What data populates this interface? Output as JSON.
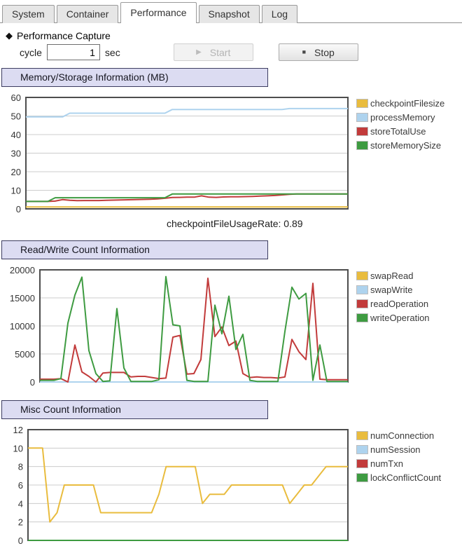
{
  "tabs": {
    "items": [
      {
        "label": "System",
        "active": false
      },
      {
        "label": "Container",
        "active": false
      },
      {
        "label": "Performance",
        "active": true
      },
      {
        "label": "Snapshot",
        "active": false
      },
      {
        "label": "Log",
        "active": false
      }
    ]
  },
  "capture": {
    "bullet_icon": "◆",
    "title": "Performance Capture",
    "cycle_label": "cycle",
    "cycle_value": "1",
    "unit_label": "sec",
    "start_icon": "▶",
    "start_label": "Start",
    "stop_icon": "■",
    "stop_label": "Stop"
  },
  "colors": {
    "yellow": "#e9bc3e",
    "light_blue": "#aed3ee",
    "red": "#c23b3b",
    "green": "#3e9b41",
    "grid": "#cccccc",
    "plot_border": "#4d4d4d",
    "section_bg": "#dcdcf2"
  },
  "chart_data": [
    {
      "type": "line",
      "title": "Memory/Storage Information (MB)",
      "ylim": [
        0,
        60
      ],
      "yticks": [
        0,
        10,
        20,
        30,
        40,
        50,
        60
      ],
      "grid": true,
      "legend_position": "right",
      "footnote": "checkpointFileUsageRate: 0.89",
      "series": [
        {
          "name": "checkpointFilesize",
          "color": "#e9bc3e",
          "values": [
            1,
            1,
            1,
            1,
            1,
            1,
            1,
            1,
            1,
            1,
            1,
            1,
            1,
            1,
            1,
            1,
            1,
            1,
            1,
            1,
            1,
            1,
            1,
            1,
            1,
            1,
            1,
            1,
            1,
            1,
            1,
            1,
            1,
            1,
            1,
            1,
            1,
            1,
            1,
            1,
            1,
            1,
            1,
            1,
            1
          ]
        },
        {
          "name": "processMemory",
          "color": "#aed3ee",
          "values": [
            49.5,
            49.5,
            49.5,
            49.5,
            49.5,
            49.5,
            51.5,
            51.5,
            51.5,
            51.5,
            51.5,
            51.5,
            51.5,
            51.5,
            51.5,
            51.5,
            51.5,
            51.5,
            51.5,
            51.5,
            53.5,
            53.5,
            53.5,
            53.5,
            53.5,
            53.5,
            53.5,
            53.5,
            53.5,
            53.5,
            53.5,
            53.5,
            53.5,
            53.5,
            53.5,
            53.5,
            54,
            54,
            54,
            54,
            54,
            54,
            54,
            54,
            54
          ]
        },
        {
          "name": "storeTotalUse",
          "color": "#c23b3b",
          "values": [
            4,
            4,
            4,
            4,
            4.2,
            5,
            4.6,
            4.4,
            4.5,
            4.5,
            4.5,
            4.6,
            4.7,
            4.8,
            4.9,
            5,
            5.1,
            5.2,
            5.4,
            5.7,
            6.1,
            6.2,
            6.3,
            6.3,
            7,
            6.3,
            6.2,
            6.4,
            6.5,
            6.5,
            6.6,
            6.7,
            6.9,
            7,
            7.2,
            7.5,
            7.8,
            8,
            8,
            8,
            8,
            8,
            8,
            8,
            8
          ]
        },
        {
          "name": "storeMemorySize",
          "color": "#3e9b41",
          "values": [
            4,
            4,
            4,
            4,
            6,
            6,
            6,
            6,
            6,
            6,
            6,
            6,
            6,
            6,
            6,
            6,
            6,
            6,
            6,
            6,
            8,
            8,
            8,
            8,
            8,
            8,
            8,
            8,
            8,
            8,
            8,
            8,
            8,
            8,
            8,
            8,
            8,
            8,
            8,
            8,
            8,
            8,
            8,
            8,
            8
          ]
        }
      ]
    },
    {
      "type": "line",
      "title": "Read/Write Count Information",
      "ylim": [
        0,
        20000
      ],
      "yticks": [
        0,
        5000,
        10000,
        15000,
        20000
      ],
      "grid": true,
      "legend_position": "right",
      "series": [
        {
          "name": "swapRead",
          "color": "#e9bc3e",
          "values": [
            0,
            0,
            0,
            0,
            0,
            0,
            0,
            0,
            0,
            0,
            0,
            0,
            0,
            0,
            0,
            0,
            0,
            0,
            0,
            0,
            0,
            0,
            0,
            0,
            0,
            0,
            0,
            0,
            0,
            0,
            0,
            0,
            0,
            0,
            0,
            0,
            0,
            0,
            0,
            0,
            0,
            0,
            0,
            0,
            0
          ]
        },
        {
          "name": "swapWrite",
          "color": "#aed3ee",
          "values": [
            0,
            0,
            0,
            0,
            0,
            0,
            0,
            0,
            0,
            0,
            0,
            0,
            0,
            0,
            0,
            0,
            0,
            0,
            0,
            0,
            0,
            0,
            0,
            0,
            0,
            0,
            0,
            0,
            0,
            0,
            0,
            0,
            0,
            0,
            0,
            0,
            0,
            0,
            0,
            0,
            0,
            0,
            0,
            0,
            0
          ]
        },
        {
          "name": "readOperation",
          "color": "#c23b3b",
          "values": [
            500,
            500,
            500,
            600,
            0,
            6600,
            1800,
            1000,
            0,
            1600,
            1700,
            1700,
            1700,
            900,
            1000,
            1000,
            800,
            600,
            700,
            8000,
            8300,
            1400,
            1500,
            4000,
            18500,
            8100,
            9800,
            6500,
            7300,
            1500,
            800,
            900,
            800,
            800,
            700,
            900,
            7600,
            5400,
            4000,
            17600,
            500,
            400,
            400,
            400,
            400
          ]
        },
        {
          "name": "writeOperation",
          "color": "#3e9b41",
          "values": [
            300,
            300,
            300,
            600,
            10500,
            15500,
            18700,
            5600,
            1500,
            100,
            200,
            13100,
            2500,
            100,
            100,
            100,
            100,
            400,
            18800,
            10200,
            10000,
            300,
            100,
            100,
            100,
            13700,
            8600,
            15300,
            5800,
            8500,
            300,
            100,
            100,
            100,
            100,
            9000,
            16900,
            14800,
            15800,
            300,
            6600,
            100,
            100,
            100,
            100
          ]
        }
      ]
    },
    {
      "type": "line",
      "title": "Misc Count Information",
      "ylim": [
        0,
        12
      ],
      "yticks": [
        0,
        2,
        4,
        6,
        8,
        10,
        12
      ],
      "grid": true,
      "legend_position": "right",
      "series": [
        {
          "name": "numConnection",
          "color": "#e9bc3e",
          "values": [
            10,
            10,
            10,
            2,
            3,
            6,
            6,
            6,
            6,
            6,
            3,
            3,
            3,
            3,
            3,
            3,
            3,
            3,
            5,
            8,
            8,
            8,
            8,
            8,
            4,
            5,
            5,
            5,
            6,
            6,
            6,
            6,
            6,
            6,
            6,
            6,
            4,
            5,
            6,
            6,
            7,
            8,
            8,
            8,
            8
          ]
        },
        {
          "name": "numSession",
          "color": "#aed3ee",
          "values": [
            0,
            0,
            0,
            0,
            0,
            0,
            0,
            0,
            0,
            0,
            0,
            0,
            0,
            0,
            0,
            0,
            0,
            0,
            0,
            0,
            0,
            0,
            0,
            0,
            0,
            0,
            0,
            0,
            0,
            0,
            0,
            0,
            0,
            0,
            0,
            0,
            0,
            0,
            0,
            0,
            0,
            0,
            0,
            0,
            0
          ]
        },
        {
          "name": "numTxn",
          "color": "#c23b3b",
          "values": [
            0,
            0,
            0,
            0,
            0,
            0,
            0,
            0,
            0,
            0,
            0,
            0,
            0,
            0,
            0,
            0,
            0,
            0,
            0,
            0,
            0,
            0,
            0,
            0,
            0,
            0,
            0,
            0,
            0,
            0,
            0,
            0,
            0,
            0,
            0,
            0,
            0,
            0,
            0,
            0,
            0,
            0,
            0,
            0,
            0
          ]
        },
        {
          "name": "lockConflictCount",
          "color": "#3e9b41",
          "values": [
            0,
            0,
            0,
            0,
            0,
            0,
            0,
            0,
            0,
            0,
            0,
            0,
            0,
            0,
            0,
            0,
            0,
            0,
            0,
            0,
            0,
            0,
            0,
            0,
            0,
            0,
            0,
            0,
            0,
            0,
            0,
            0,
            0,
            0,
            0,
            0,
            0,
            0,
            0,
            0,
            0,
            0,
            0,
            0,
            0
          ]
        }
      ]
    }
  ]
}
